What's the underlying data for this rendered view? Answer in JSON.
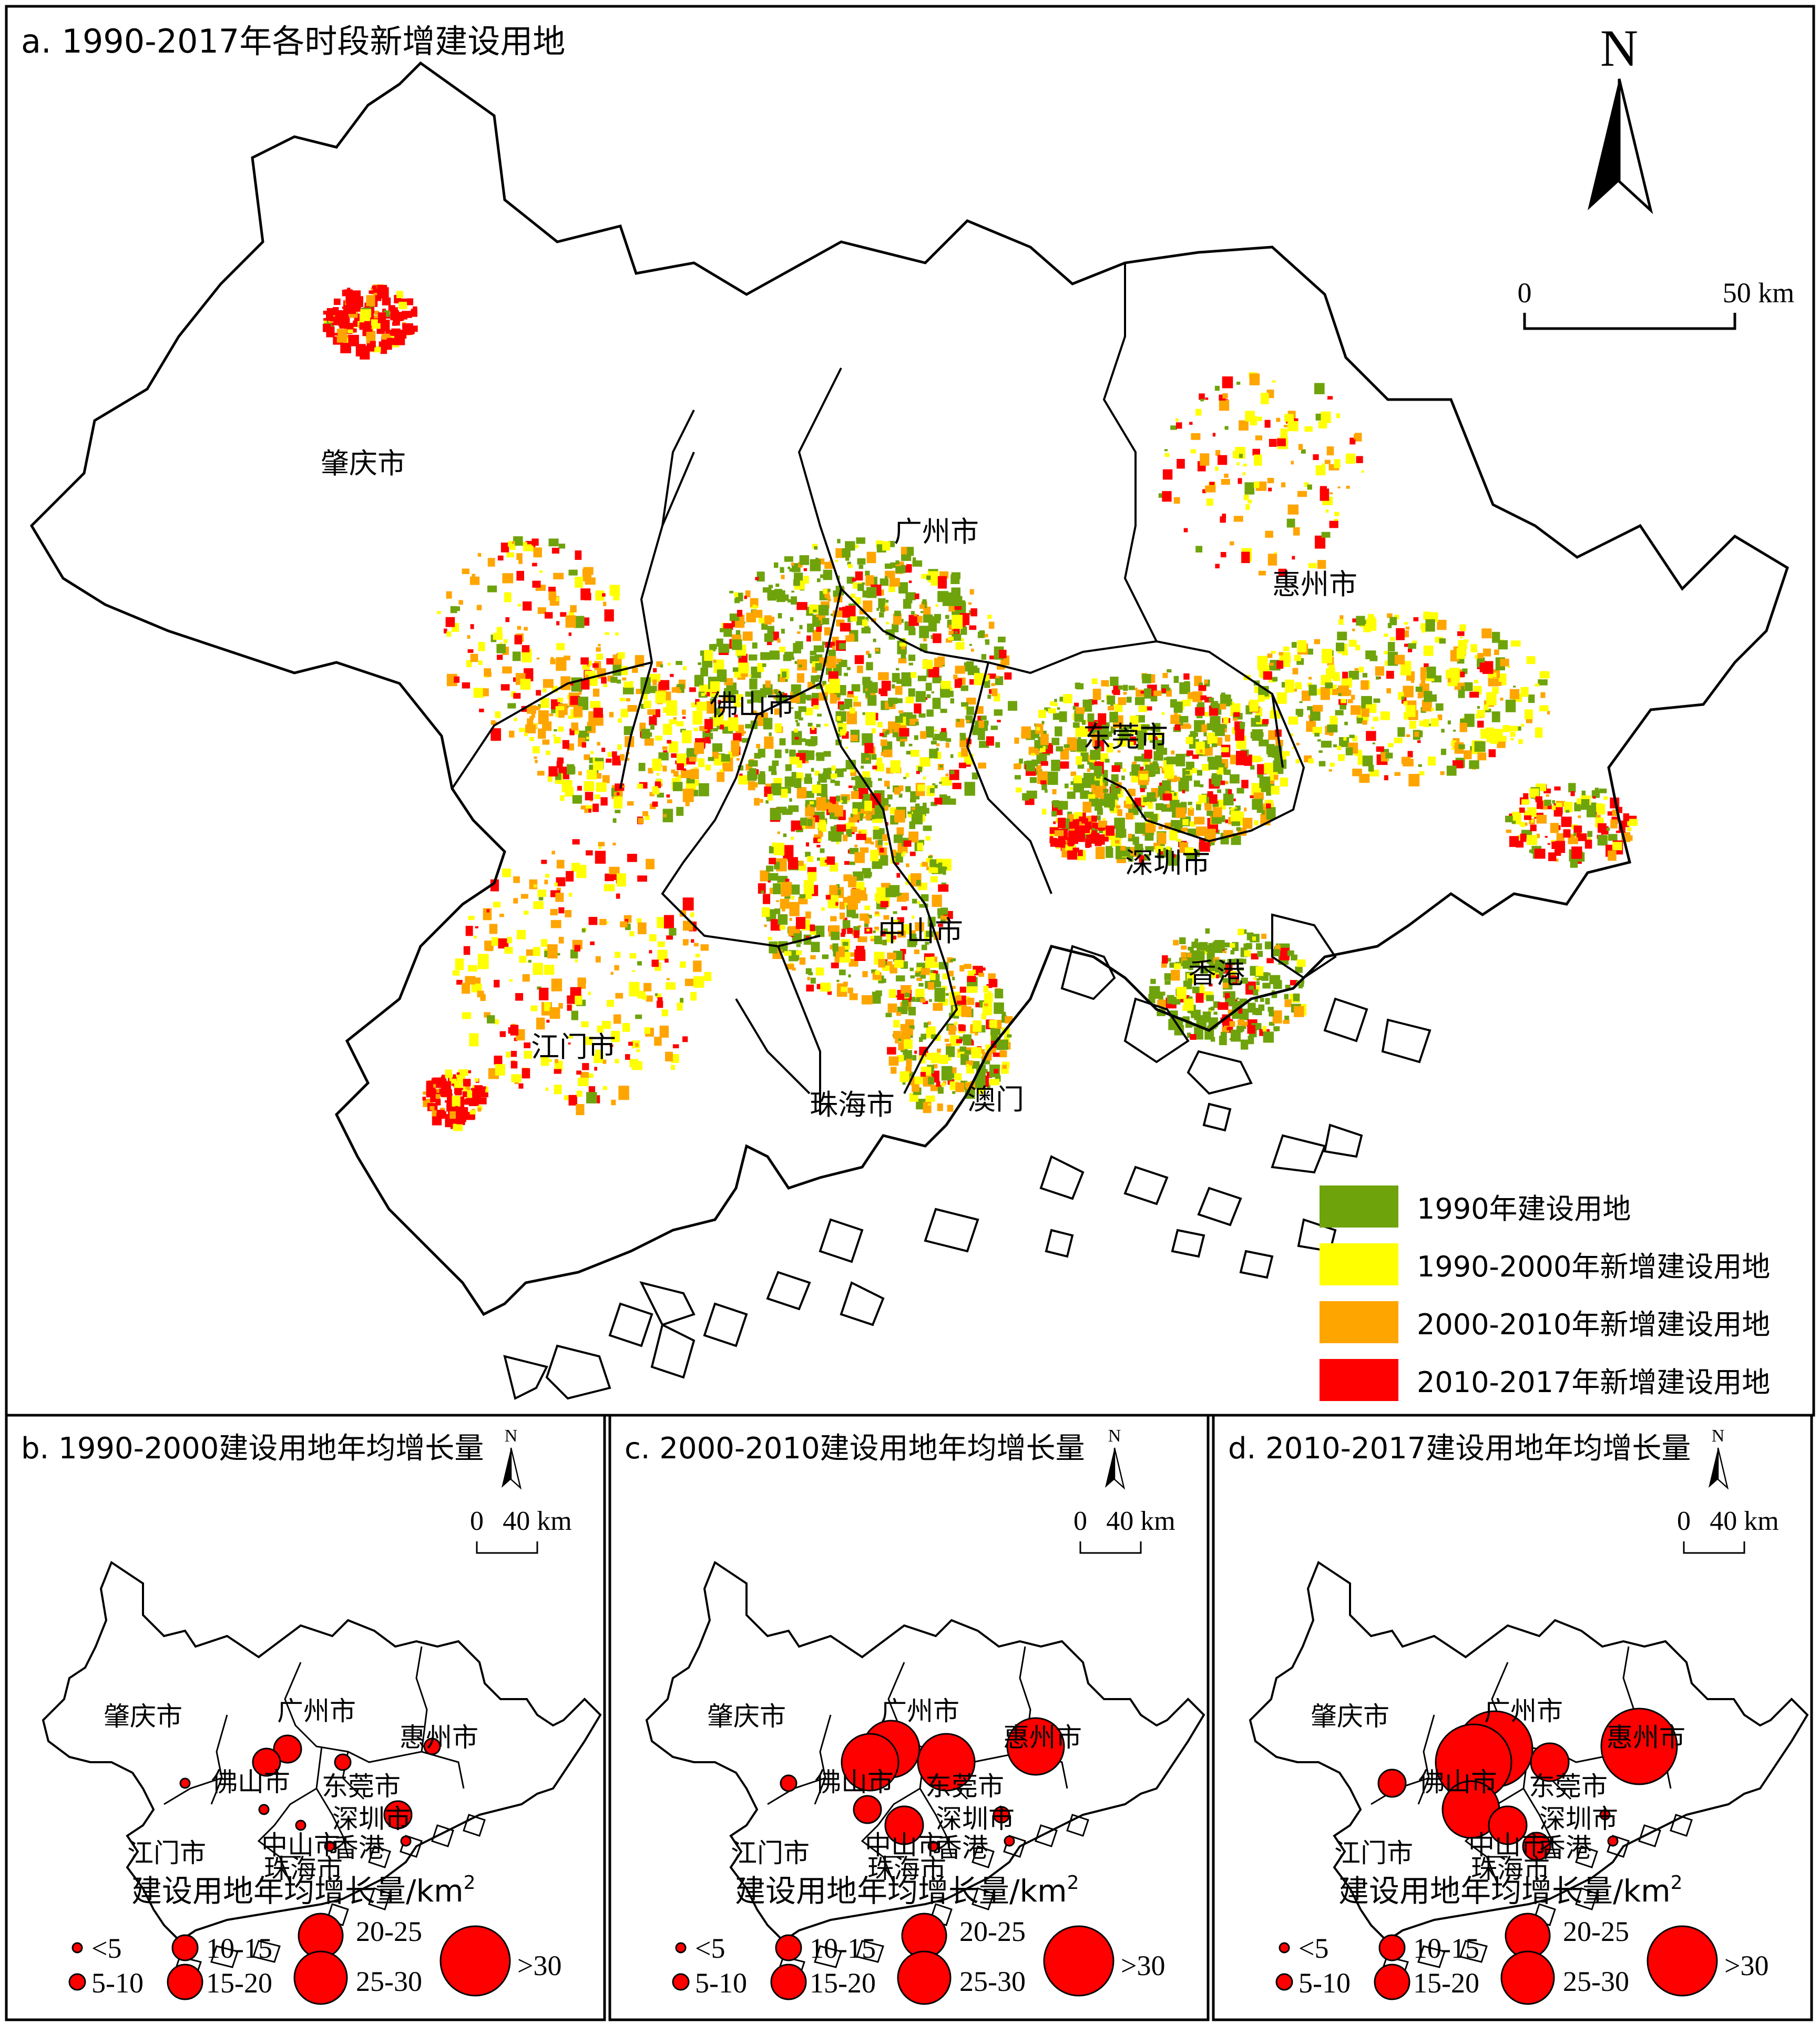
{
  "panel_a": {
    "title": "a. 1990-2017年各时段新增建设用地",
    "north": "N",
    "scale": {
      "start": "0",
      "end": "50 km"
    },
    "cities": [
      {
        "name": "肇庆市",
        "key": "zhaoqing"
      },
      {
        "name": "广州市",
        "key": "guangzhou"
      },
      {
        "name": "惠州市",
        "key": "huizhou"
      },
      {
        "name": "佛山市",
        "key": "foshan"
      },
      {
        "name": "东莞市",
        "key": "dongguan"
      },
      {
        "name": "深圳市",
        "key": "shenzhen"
      },
      {
        "name": "中山市",
        "key": "zhongshan"
      },
      {
        "name": "香港",
        "key": "hongkong"
      },
      {
        "name": "江门市",
        "key": "jiangmen"
      },
      {
        "name": "珠海市",
        "key": "zhuhai"
      },
      {
        "name": "澳门",
        "key": "macau"
      }
    ],
    "legend": [
      {
        "label": "1990年建设用地",
        "color": "#6fa30c"
      },
      {
        "label": "1990-2000年新增建设用地",
        "color": "#ffff00"
      },
      {
        "label": "2000-2010年新增建设用地",
        "color": "#ffa500"
      },
      {
        "label": "2010-2017年新增建设用地",
        "color": "#ff0000"
      }
    ]
  },
  "small_panels": {
    "north": "N",
    "scale": {
      "start": "0",
      "end": "40 km"
    },
    "cities": [
      {
        "name": "肇庆市",
        "key": "zhaoqing"
      },
      {
        "name": "广州市",
        "key": "guangzhou"
      },
      {
        "name": "惠州市",
        "key": "huizhou"
      },
      {
        "name": "佛山市",
        "key": "foshan"
      },
      {
        "name": "东莞市",
        "key": "dongguan"
      },
      {
        "name": "深圳市",
        "key": "shenzhen"
      },
      {
        "name": "中山市",
        "key": "zhongshan"
      },
      {
        "name": "香港",
        "key": "hongkong"
      },
      {
        "name": "江门市",
        "key": "jiangmen"
      },
      {
        "name": "珠海市",
        "key": "zhuhai"
      }
    ],
    "legend_title": "建设用地年均增长量/km",
    "legend_title_sup": "2",
    "legend_classes": [
      {
        "label": "<5",
        "key": "c1"
      },
      {
        "label": "5-10",
        "key": "c2"
      },
      {
        "label": "10-15",
        "key": "c3"
      },
      {
        "label": "15-20",
        "key": "c4"
      },
      {
        "label": "20-25",
        "key": "c5"
      },
      {
        "label": "25-30",
        "key": "c6"
      },
      {
        "label": ">30",
        "key": "c7"
      }
    ],
    "bubble_color": "#ff0000"
  },
  "panels": [
    {
      "id": "b",
      "title": "b. 1990-2000建设用地年均增长量",
      "class_by_city": {
        "zhaoqing": "c1",
        "guangzhou": "c3",
        "foshan": "c3",
        "dongguan": "c2",
        "huizhou": "c2",
        "zhongshan": "c1",
        "jiangmen": "c1",
        "shenzhen": "c3",
        "zhuhai": "c1",
        "hongkong": "c1"
      }
    },
    {
      "id": "c",
      "title": "c. 2000-2010建设用地年均增长量",
      "class_by_city": {
        "zhaoqing": "c2",
        "guangzhou": "c6",
        "foshan": "c6",
        "dongguan": "c6",
        "huizhou": "c6",
        "zhongshan": "c4",
        "jiangmen": "c3",
        "shenzhen": "c2",
        "zhuhai": "c1",
        "hongkong": "c1"
      }
    },
    {
      "id": "d",
      "title": "d. 2010-2017建设用地年均增长量",
      "class_by_city": {
        "zhaoqing": "c3",
        "guangzhou": "c7",
        "foshan": "c7",
        "dongguan": "c4",
        "huizhou": "c7",
        "zhongshan": "c4",
        "jiangmen": "c6",
        "shenzhen": "c1",
        "zhuhai": "c3",
        "hongkong": "c1"
      }
    }
  ]
}
